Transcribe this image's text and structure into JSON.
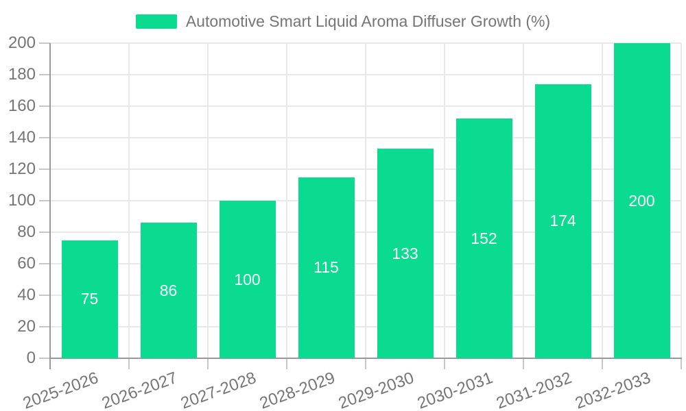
{
  "legend": {
    "label": "Automotive Smart Liquid Aroma Diffuser Growth (%)",
    "swatch_color": "#0adb91"
  },
  "chart_data": {
    "type": "bar",
    "title": "Automotive Smart Liquid Aroma Diffuser Growth (%)",
    "categories": [
      "2025-2026",
      "2026-2027",
      "2027-2028",
      "2028-2029",
      "2029-2030",
      "2030-2031",
      "2031-2032",
      "2032-2033"
    ],
    "values": [
      75,
      86,
      100,
      115,
      133,
      152,
      174,
      200
    ],
    "yticks": [
      0,
      20,
      40,
      60,
      80,
      100,
      120,
      140,
      160,
      180,
      200
    ],
    "ylim": [
      0,
      200
    ],
    "grid": true,
    "legend_position": "top-center",
    "bar_color": "#0adb91",
    "bar_label_color": "#ffffff",
    "axis_line_color": "#999999",
    "tick_color": "#c7c7c7",
    "grid_color": "#e8e8e8",
    "text_color": "#757575",
    "background_color": "#ffffff"
  }
}
